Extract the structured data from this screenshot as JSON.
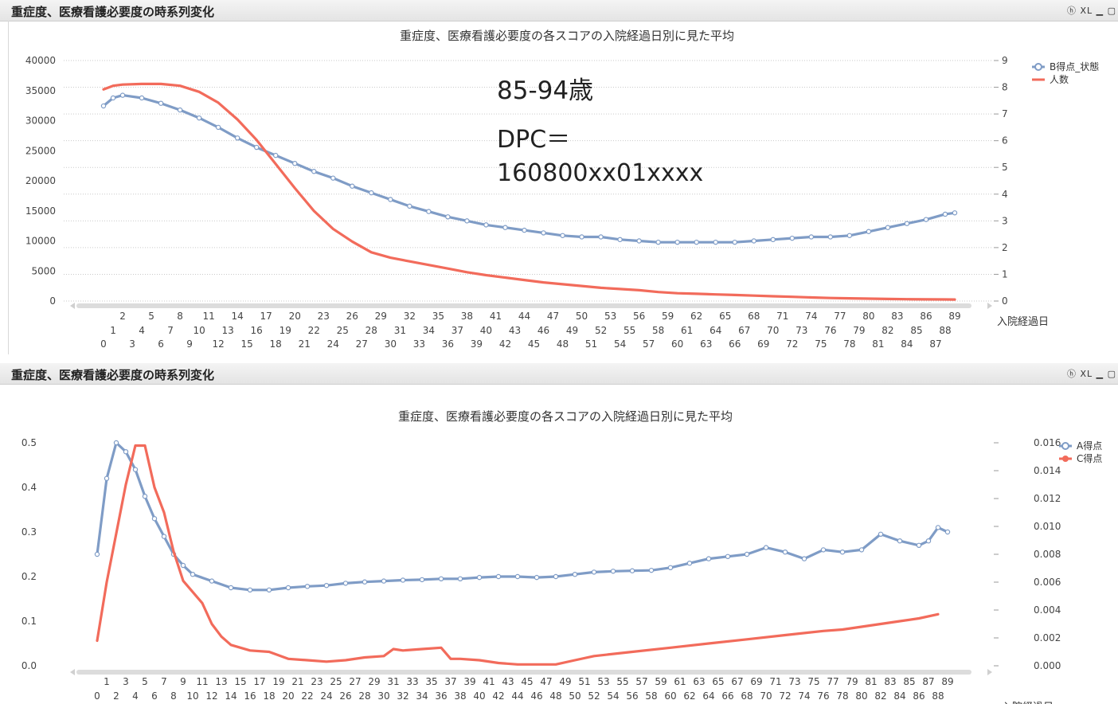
{
  "panels": [
    {
      "caption": "重症度、医療看護必要度の時系列変化",
      "toolbar": "ⓗ XL ▁ ▢",
      "annotation": {
        "age": "85-94歳",
        "dpc_label": "DPC＝",
        "dpc_code": "160800xx01xxxx"
      }
    },
    {
      "caption": "重症度、医療看護必要度の時系列変化",
      "toolbar": "ⓗ XL ▁ ▢"
    }
  ],
  "chart_data": [
    {
      "type": "line",
      "title": "重症度、医療看護必要度の各スコアの入院経過日別に見た平均",
      "xlabel": "入院経過日",
      "ylim_left": [
        0,
        40000
      ],
      "yticks_left": [
        0,
        5000,
        10000,
        15000,
        20000,
        25000,
        30000,
        35000,
        40000
      ],
      "ylim_right": [
        0,
        9
      ],
      "yticks_right": [
        0,
        1,
        2,
        3,
        4,
        5,
        6,
        7,
        8,
        9
      ],
      "x_range": [
        0,
        89
      ],
      "grid": "horizontal-dotted",
      "legend": "top-right",
      "series": [
        {
          "name": "B得点_状態",
          "axis": "right",
          "color": "#7f9cc6",
          "marker": "end-circles",
          "x": [
            0,
            1,
            2,
            4,
            6,
            8,
            10,
            12,
            14,
            16,
            18,
            20,
            22,
            24,
            26,
            28,
            30,
            32,
            34,
            36,
            38,
            40,
            42,
            44,
            46,
            48,
            50,
            52,
            54,
            56,
            58,
            60,
            62,
            64,
            66,
            68,
            70,
            72,
            74,
            76,
            78,
            80,
            82,
            84,
            86,
            88,
            89
          ],
          "y": [
            7.3,
            7.6,
            7.7,
            7.6,
            7.4,
            7.15,
            6.85,
            6.5,
            6.1,
            5.75,
            5.45,
            5.15,
            4.85,
            4.6,
            4.3,
            4.05,
            3.8,
            3.55,
            3.35,
            3.15,
            3.0,
            2.85,
            2.75,
            2.65,
            2.55,
            2.45,
            2.4,
            2.4,
            2.3,
            2.25,
            2.2,
            2.2,
            2.2,
            2.2,
            2.2,
            2.25,
            2.3,
            2.35,
            2.4,
            2.4,
            2.45,
            2.6,
            2.75,
            2.9,
            3.05,
            3.25,
            3.3
          ]
        },
        {
          "name": "人数",
          "axis": "left",
          "color": "#f26b5b",
          "x": [
            0,
            1,
            2,
            4,
            6,
            8,
            10,
            12,
            14,
            16,
            18,
            20,
            22,
            24,
            26,
            28,
            30,
            32,
            34,
            36,
            38,
            40,
            42,
            44,
            46,
            48,
            50,
            52,
            54,
            56,
            58,
            60,
            62,
            64,
            66,
            68,
            70,
            72,
            74,
            76,
            78,
            80,
            82,
            84,
            86,
            88,
            89
          ],
          "y": [
            35200,
            35800,
            36000,
            36100,
            36100,
            35800,
            34800,
            33000,
            30200,
            26800,
            22800,
            18800,
            15000,
            12000,
            9900,
            8100,
            7200,
            6600,
            6000,
            5400,
            4800,
            4300,
            3900,
            3500,
            3100,
            2800,
            2500,
            2200,
            2000,
            1800,
            1500,
            1300,
            1200,
            1100,
            1000,
            900,
            800,
            700,
            600,
            500,
            450,
            400,
            350,
            300,
            280,
            260,
            250
          ]
        }
      ]
    },
    {
      "type": "line",
      "title": "重症度、医療看護必要度の各スコアの入院経過日別に見た平均",
      "xlabel": "入院経過日",
      "ylim_left": [
        0,
        0.5
      ],
      "yticks_left": [
        0.0,
        0.1,
        0.2,
        0.3,
        0.4,
        0.5
      ],
      "ylim_right": [
        0,
        0.016
      ],
      "yticks_right": [
        "0.000",
        "0.002",
        "0.004",
        "0.006",
        "0.008",
        "0.010",
        "0.012",
        "0.014",
        "0.016"
      ],
      "x_range": [
        0,
        89
      ],
      "grid": "off",
      "legend": "top-right",
      "series": [
        {
          "name": "A得点",
          "axis": "left",
          "color": "#7f9cc6",
          "marker": "end-circles",
          "x": [
            0,
            1,
            2,
            3,
            4,
            5,
            6,
            7,
            8,
            9,
            10,
            12,
            14,
            16,
            18,
            20,
            22,
            24,
            26,
            28,
            30,
            32,
            34,
            36,
            38,
            40,
            42,
            44,
            46,
            48,
            50,
            52,
            54,
            56,
            58,
            60,
            62,
            64,
            66,
            68,
            70,
            72,
            74,
            76,
            78,
            80,
            82,
            84,
            86,
            87,
            88,
            89
          ],
          "y": [
            0.25,
            0.42,
            0.5,
            0.48,
            0.44,
            0.38,
            0.33,
            0.29,
            0.25,
            0.225,
            0.205,
            0.19,
            0.175,
            0.17,
            0.17,
            0.175,
            0.178,
            0.18,
            0.185,
            0.188,
            0.19,
            0.192,
            0.193,
            0.195,
            0.195,
            0.198,
            0.2,
            0.2,
            0.198,
            0.2,
            0.205,
            0.21,
            0.212,
            0.213,
            0.214,
            0.22,
            0.23,
            0.24,
            0.245,
            0.25,
            0.265,
            0.255,
            0.24,
            0.26,
            0.255,
            0.26,
            0.295,
            0.28,
            0.27,
            0.28,
            0.31,
            0.3
          ]
        },
        {
          "name": "C得点",
          "axis": "right",
          "color": "#f26b5b",
          "x": [
            0,
            1,
            2,
            3,
            4,
            5,
            6,
            7,
            8,
            9,
            10,
            11,
            12,
            13,
            14,
            16,
            18,
            20,
            22,
            24,
            26,
            28,
            30,
            31,
            32,
            34,
            36,
            37,
            38,
            40,
            42,
            44,
            46,
            48,
            50,
            52,
            56,
            60,
            64,
            68,
            72,
            76,
            78,
            80,
            84,
            86,
            88
          ],
          "y": [
            0.0018,
            0.006,
            0.0095,
            0.013,
            0.0158,
            0.0158,
            0.0128,
            0.011,
            0.0082,
            0.0061,
            0.0053,
            0.0045,
            0.003,
            0.0021,
            0.0015,
            0.0011,
            0.001,
            0.0005,
            0.0004,
            0.0003,
            0.0004,
            0.0006,
            0.0007,
            0.0012,
            0.0011,
            0.0012,
            0.0013,
            0.0005,
            0.0005,
            0.0004,
            0.0002,
            0.0001,
            0.0001,
            0.0001,
            0.0004,
            0.0007,
            0.001,
            0.0013,
            0.0016,
            0.0019,
            0.0022,
            0.0025,
            0.0026,
            0.0028,
            0.0032,
            0.0034,
            0.0037
          ]
        }
      ]
    }
  ]
}
